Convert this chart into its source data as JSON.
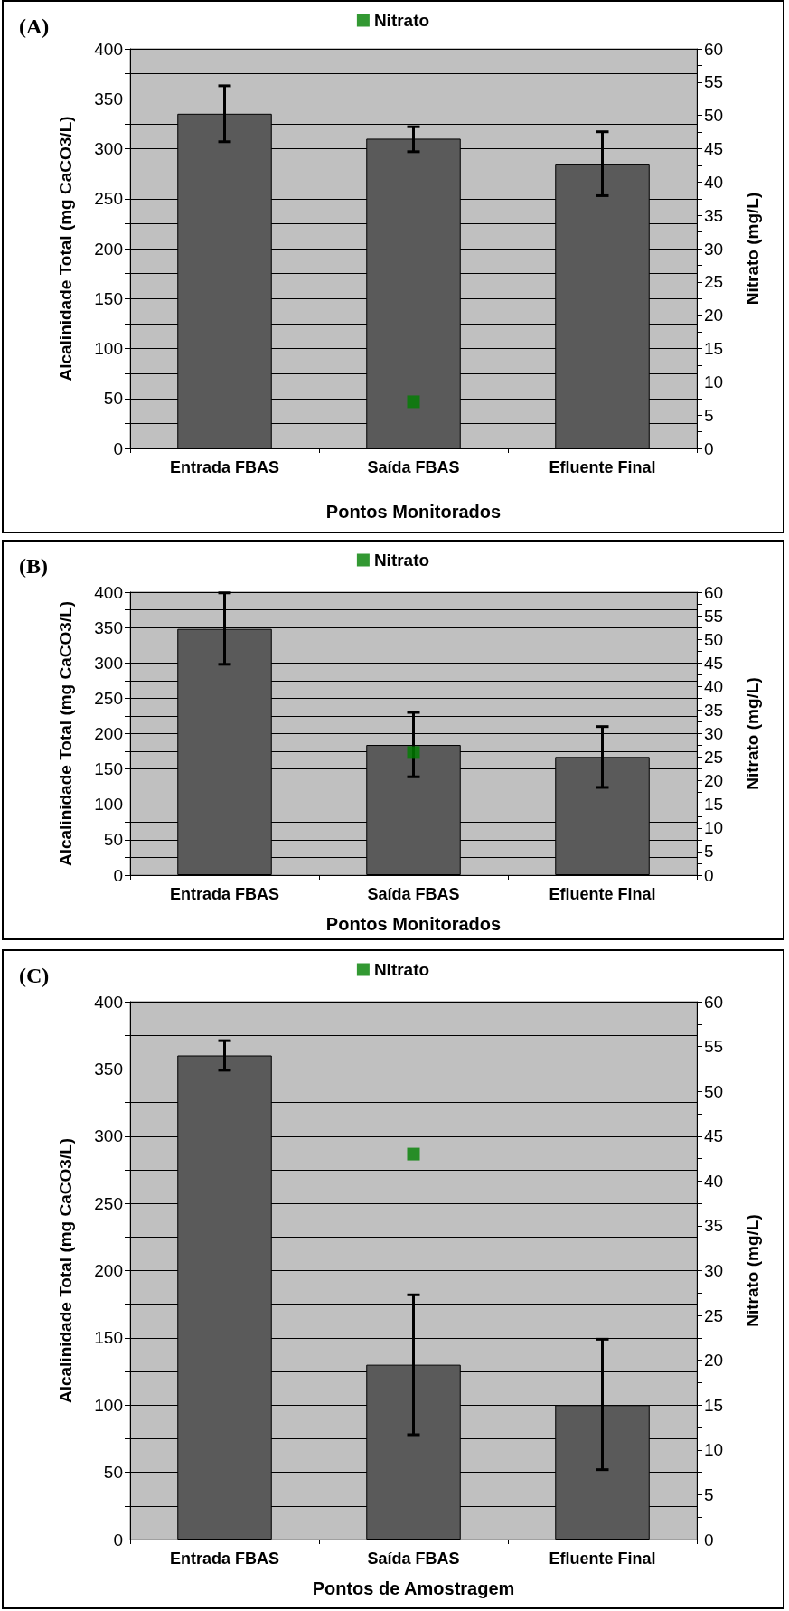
{
  "chart_data": [
    {
      "type": "bar",
      "title": "(A)",
      "xlabel": "Pontos Monitorados",
      "ylabel": "Alcalinidade Total (mg CaCO3/L)",
      "y2label": "Nitrato (mg/L)",
      "categories": [
        "Entrada FBAS",
        "Saída FBAS",
        "Efluente Final"
      ],
      "series": [
        {
          "color": "#5a5a5a",
          "values": [
            335,
            310,
            285
          ],
          "errors": [
            [
              307,
              363
            ],
            [
              297,
              322
            ],
            [
              253,
              317
            ]
          ]
        },
        {
          "type": "scatter",
          "name": "Nitrato",
          "color": "#008000",
          "axis": "y2",
          "marker": "square",
          "x": [
            "Saída FBAS"
          ],
          "values": [
            7
          ]
        }
      ],
      "ylim": [
        0,
        400
      ],
      "yticks": [
        0,
        {
          "value": 25,
          "label": null
        },
        50,
        {
          "value": 75,
          "label": null
        },
        100,
        {
          "value": 125,
          "label": null
        },
        150,
        {
          "value": 175,
          "label": null
        },
        200,
        {
          "value": 225,
          "label": null
        },
        250,
        {
          "value": 275,
          "label": null
        },
        300,
        {
          "value": 325,
          "label": null
        },
        350,
        {
          "value": 375,
          "label": null
        },
        400
      ],
      "y2lim": [
        0,
        60
      ],
      "y2ticks": [
        0,
        {
          "value": 2.5,
          "label": null
        },
        5,
        {
          "value": 7.5,
          "label": null
        },
        10,
        {
          "value": 12.5,
          "label": null
        },
        15,
        {
          "value": 17.5,
          "label": null
        },
        20,
        {
          "value": 22.5,
          "label": null
        },
        25,
        {
          "value": 27.5,
          "label": null
        },
        30,
        {
          "value": 32.5,
          "label": null
        },
        35,
        {
          "value": 37.5,
          "label": null
        },
        40,
        {
          "value": 42.5,
          "label": null
        },
        45,
        {
          "value": 47.5,
          "label": null
        },
        50,
        {
          "value": 52.5,
          "label": null
        },
        55,
        {
          "value": 57.5,
          "label": null
        },
        60
      ],
      "grid": "y",
      "legend": "top"
    },
    {
      "type": "bar",
      "title": "(B)",
      "xlabel": "Pontos Monitorados",
      "ylabel": "Alcalinidade Total (mg CaCO3/L)",
      "y2label": "Nitrato (mg/L)",
      "categories": [
        "Entrada FBAS",
        "Saída FBAS",
        "Efluente Final"
      ],
      "series": [
        {
          "color": "#5a5a5a",
          "values": [
            348,
            184,
            167
          ],
          "errors": [
            [
              298,
              399
            ],
            [
              139,
              230
            ],
            [
              124,
              210
            ]
          ]
        },
        {
          "type": "scatter",
          "name": "Nitrato",
          "color": "#008000",
          "axis": "y2",
          "marker": "square",
          "x": [
            "Saída FBAS"
          ],
          "values": [
            26
          ]
        }
      ],
      "ylim": [
        0,
        400
      ],
      "yticks": [
        0,
        {
          "value": 25,
          "label": null
        },
        50,
        {
          "value": 75,
          "label": null
        },
        100,
        {
          "value": 125,
          "label": null
        },
        150,
        {
          "value": 175,
          "label": null
        },
        200,
        {
          "value": 225,
          "label": null
        },
        250,
        {
          "value": 275,
          "label": null
        },
        300,
        {
          "value": 325,
          "label": null
        },
        350,
        {
          "value": 375,
          "label": null
        },
        400
      ],
      "y2lim": [
        0,
        60
      ],
      "y2ticks": [
        0,
        {
          "value": 2.5,
          "label": null
        },
        5,
        {
          "value": 7.5,
          "label": null
        },
        10,
        {
          "value": 12.5,
          "label": null
        },
        15,
        {
          "value": 17.5,
          "label": null
        },
        20,
        {
          "value": 22.5,
          "label": null
        },
        25,
        {
          "value": 27.5,
          "label": null
        },
        30,
        {
          "value": 32.5,
          "label": null
        },
        35,
        {
          "value": 37.5,
          "label": null
        },
        40,
        {
          "value": 42.5,
          "label": null
        },
        45,
        {
          "value": 47.5,
          "label": null
        },
        50,
        {
          "value": 52.5,
          "label": null
        },
        55,
        {
          "value": 57.5,
          "label": null
        },
        60
      ],
      "grid": "y",
      "legend": "top"
    },
    {
      "type": "bar",
      "title": "(C)",
      "xlabel": "Pontos de Amostragem",
      "ylabel": "Alcalinidade Total (mg CaCO3/L)",
      "y2label": "Nitrato (mg/L)",
      "categories": [
        "Entrada FBAS",
        "Saída FBAS",
        "Efluente Final"
      ],
      "series": [
        {
          "color": "#5a5a5a",
          "values": [
            360,
            130,
            100
          ],
          "errors": [
            [
              349,
              371
            ],
            [
              78,
              182
            ],
            [
              52,
              149
            ]
          ]
        },
        {
          "type": "scatter",
          "name": "Nitrato",
          "color": "#008000",
          "axis": "y2",
          "marker": "square",
          "x": [
            "Saída FBAS"
          ],
          "values": [
            43
          ]
        }
      ],
      "ylim": [
        0,
        400
      ],
      "yticks": [
        0,
        {
          "value": 25,
          "label": null
        },
        50,
        {
          "value": 75,
          "label": null
        },
        100,
        {
          "value": 125,
          "label": null
        },
        150,
        {
          "value": 175,
          "label": null
        },
        200,
        {
          "value": 225,
          "label": null
        },
        250,
        {
          "value": 275,
          "label": null
        },
        300,
        {
          "value": 325,
          "label": null
        },
        350,
        {
          "value": 375,
          "label": null
        },
        400
      ],
      "y2lim": [
        0,
        60
      ],
      "y2ticks": [
        0,
        {
          "value": 2.5,
          "label": null
        },
        5,
        {
          "value": 7.5,
          "label": null
        },
        10,
        {
          "value": 12.5,
          "label": null
        },
        15,
        {
          "value": 17.5,
          "label": null
        },
        20,
        {
          "value": 22.5,
          "label": null
        },
        25,
        {
          "value": 27.5,
          "label": null
        },
        30,
        {
          "value": 32.5,
          "label": null
        },
        35,
        {
          "value": 37.5,
          "label": null
        },
        40,
        {
          "value": 42.5,
          "label": null
        },
        45,
        {
          "value": 47.5,
          "label": null
        },
        50,
        {
          "value": 52.5,
          "label": null
        },
        55,
        {
          "value": 57.5,
          "label": null
        },
        60
      ],
      "grid": "y",
      "legend": "top"
    }
  ]
}
